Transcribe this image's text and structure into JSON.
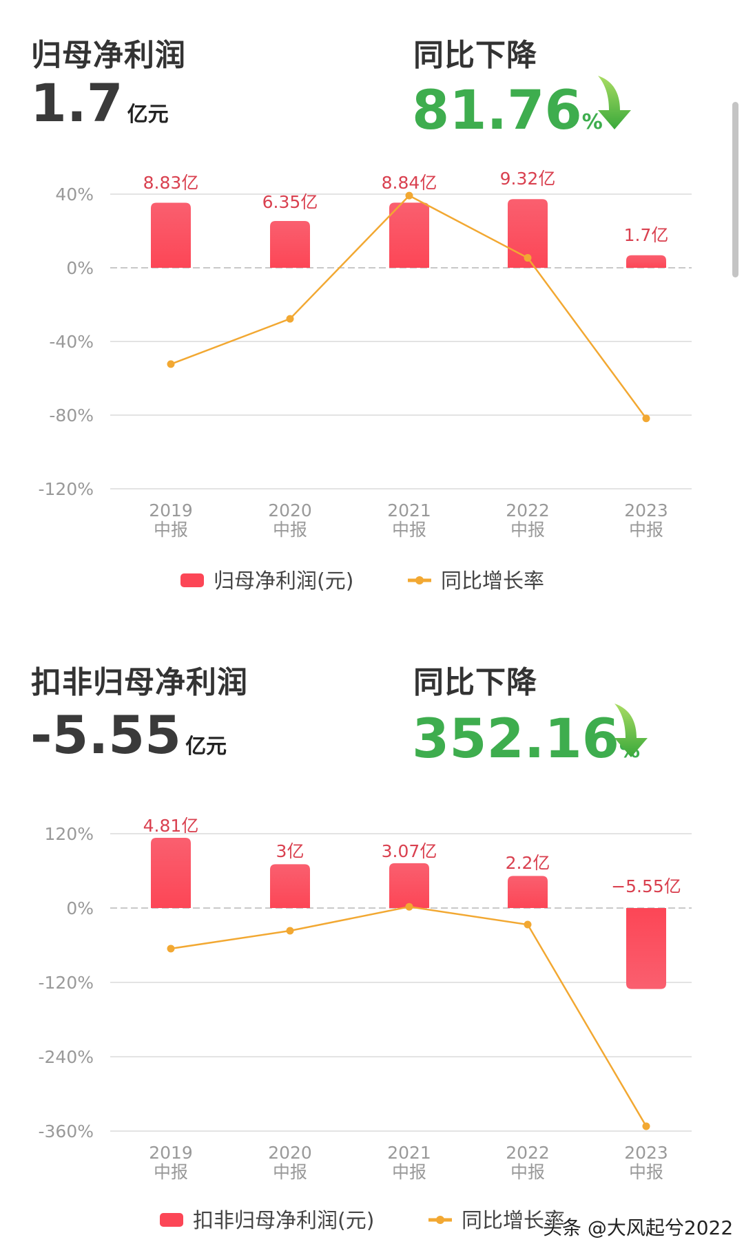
{
  "section1": {
    "title": "归母净利润",
    "value": "1.7",
    "unit": "亿元",
    "change_label": "同比下降",
    "change_value": "81.76",
    "change_unit": "%"
  },
  "section2": {
    "title": "扣非归母净利润",
    "value": "-5.55",
    "unit": "亿元",
    "change_label": "同比下降",
    "change_value": "352.16",
    "change_unit": "%"
  },
  "watermark": "头条 @大风起兮2022",
  "colors": {
    "bar": "#fc4656",
    "bar_top": "#fa5f6f",
    "line": "#f2a832",
    "green": "#3ead4e",
    "grid": "#e3e3e3",
    "axis_text": "#999999",
    "label_text": "#d9404f"
  },
  "chart_data": [
    {
      "type": "bar+line",
      "title": "归母净利润",
      "categories": [
        "2019\n中报",
        "2020\n中报",
        "2021\n中报",
        "2022\n中报",
        "2023\n中报"
      ],
      "category_years": [
        "2019",
        "2020",
        "2021",
        "2022",
        "2023"
      ],
      "category_suffix": "中报",
      "yticks": [
        "40%",
        "0%",
        "-40%",
        "-80%",
        "-120%"
      ],
      "ytick_values": [
        40,
        0,
        -40,
        -80,
        -120
      ],
      "ylim": [
        -120,
        40
      ],
      "series": [
        {
          "name": "归母净利润(元)",
          "kind": "bar",
          "values": [
            8.83,
            6.35,
            8.84,
            9.32,
            1.7
          ],
          "labels": [
            "8.83亿",
            "6.35亿",
            "8.84亿",
            "9.32亿",
            "1.7亿"
          ]
        },
        {
          "name": "同比增长率",
          "kind": "line",
          "values": [
            -52.3,
            -27.7,
            39.2,
            5.4,
            -81.76
          ]
        }
      ],
      "legend": [
        "归母净利润(元)",
        "同比增长率"
      ],
      "legend_position": "bottom",
      "grid": true
    },
    {
      "type": "bar+line",
      "title": "扣非归母净利润",
      "categories": [
        "2019\n中报",
        "2020\n中报",
        "2021\n中报",
        "2022\n中报",
        "2023\n中报"
      ],
      "category_years": [
        "2019",
        "2020",
        "2021",
        "2022",
        "2023"
      ],
      "category_suffix": "中报",
      "yticks": [
        "120%",
        "0%",
        "-120%",
        "-240%",
        "-360%"
      ],
      "ytick_values": [
        120,
        0,
        -120,
        -240,
        -360
      ],
      "ylim": [
        -360,
        120
      ],
      "series": [
        {
          "name": "扣非归母净利润(元)",
          "kind": "bar",
          "values": [
            4.81,
            3,
            3.07,
            2.2,
            -5.55
          ],
          "labels": [
            "4.81亿",
            "3亿",
            "3.07亿",
            "2.2亿",
            "−5.55亿"
          ]
        },
        {
          "name": "同比增长率",
          "kind": "line",
          "values": [
            -65.5,
            -36.7,
            2.0,
            -26.7,
            -352.16
          ]
        }
      ],
      "legend": [
        "扣非归母净利润(元)",
        "同比增长率"
      ],
      "legend_position": "bottom",
      "grid": true
    }
  ]
}
